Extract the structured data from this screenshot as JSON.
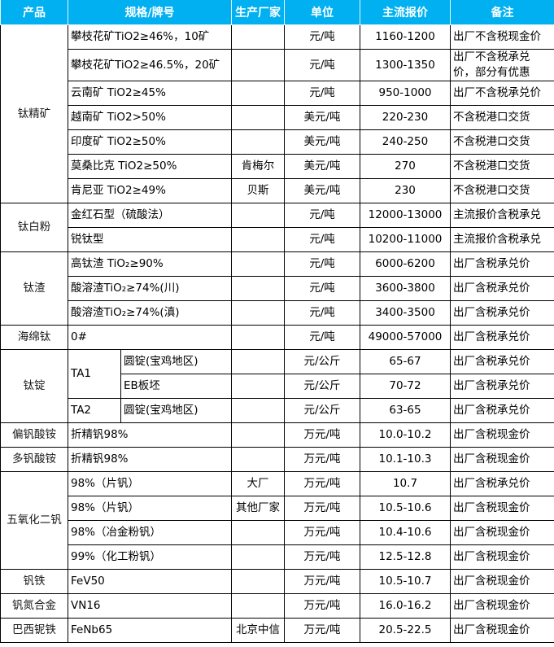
{
  "header": {
    "product": "产品",
    "spec": "规格/牌号",
    "maker": "生产厂家",
    "unit": "单位",
    "price": "主流报价",
    "note": "备注"
  },
  "colors": {
    "header_bg": "#00b0f0",
    "header_text": "#ffffff",
    "grid": "#000000"
  },
  "groups": [
    {
      "product": "钛精矿",
      "items": [
        {
          "spec": "攀枝花矿TiO2≥46%，10矿",
          "maker": "",
          "unit": "元/吨",
          "price": "1160-1200",
          "note": "出厂不含税现金价"
        },
        {
          "spec": "攀枝花矿TiO2≥46.5%，20矿",
          "maker": "",
          "unit": "元/吨",
          "price": "1300-1350",
          "note": "出厂不含税承兑价，部分有优惠"
        },
        {
          "spec": "云南矿 TiO2≥45%",
          "maker": "",
          "unit": "元/吨",
          "price": "950-1000",
          "note": "出厂不含税承兑价"
        },
        {
          "spec": "越南矿 TiO2>50%",
          "maker": "",
          "unit": "美元/吨",
          "price": "220-230",
          "note": "不含税港口交货"
        },
        {
          "spec": "印度矿 TiO2≥50%",
          "maker": "",
          "unit": "美元/吨",
          "price": "240-250",
          "note": "不含税港口交货"
        },
        {
          "spec": "莫桑比克 TiO2≥50%",
          "maker": "肯梅尔",
          "unit": "美元/吨",
          "price": "270",
          "note": "不含税港口交货"
        },
        {
          "spec": "肯尼亚 TiO2≥49%",
          "maker": "贝斯",
          "unit": "美元/吨",
          "price": "230",
          "note": "不含税港口交货"
        }
      ]
    },
    {
      "product": "钛白粉",
      "items": [
        {
          "spec": "金红石型（硫酸法）",
          "maker": "",
          "unit": "元/吨",
          "price": "12000-13000",
          "note": "主流报价含税承兑"
        },
        {
          "spec": "锐钛型",
          "maker": "",
          "unit": "元/吨",
          "price": "10200-11000",
          "note": "主流报价含税承兑"
        }
      ]
    },
    {
      "product": "钛渣",
      "items": [
        {
          "spec": "高钛渣 TiO₂≥90%",
          "maker": "",
          "unit": "元/吨",
          "price": "6000-6200",
          "note": "出厂含税承兑价"
        },
        {
          "spec": "酸溶渣TiO₂≥74%(川)",
          "maker": "",
          "unit": "元/吨",
          "price": "3600-3800",
          "note": "出厂含税承兑价"
        },
        {
          "spec": "酸溶渣TiO₂≥74%(滇)",
          "maker": "",
          "unit": "元/吨",
          "price": "3400-3500",
          "note": "出厂含税承兑价"
        }
      ]
    },
    {
      "product": "海绵钛",
      "items": [
        {
          "spec": "0#",
          "maker": "",
          "unit": "元/吨",
          "price": "49000-57000",
          "note": "出厂含税承兑价"
        }
      ]
    },
    {
      "product": "钛锭",
      "items": [
        {
          "grade": "TA1",
          "form": "圆锭(宝鸡地区)",
          "maker": "",
          "unit": "元/公斤",
          "price": "65-67",
          "note": "出厂含税承兑价"
        },
        {
          "grade": "TA1",
          "form": "EB板坯",
          "maker": "",
          "unit": "元/公斤",
          "price": "70-72",
          "note": "出厂含税承兑价"
        },
        {
          "grade": "TA2",
          "form": "圆锭(宝鸡地区)",
          "maker": "",
          "unit": "元/公斤",
          "price": "63-65",
          "note": "出厂含税承兑价"
        }
      ]
    },
    {
      "product": "偏钒酸铵",
      "items": [
        {
          "spec": "折精钒98%",
          "maker": "",
          "unit": "万元/吨",
          "price": "10.0-10.2",
          "note": "出厂含税现金价"
        }
      ]
    },
    {
      "product": "多钒酸铵",
      "items": [
        {
          "spec": "折精钒98%",
          "maker": "",
          "unit": "万元/吨",
          "price": "10.1-10.3",
          "note": "出厂含税现金价"
        }
      ]
    },
    {
      "product": "五氧化二钒",
      "items": [
        {
          "spec": "98%（片钒）",
          "maker": "大厂",
          "unit": "万元/吨",
          "price": "10.7",
          "note": "出厂含税承兑价"
        },
        {
          "spec": "98%（片钒）",
          "maker": "其他厂家",
          "unit": "万元/吨",
          "price": "10.5-10.6",
          "note": "出厂含税现金价"
        },
        {
          "spec": "98%（冶金粉钒）",
          "maker": "",
          "unit": "万元/吨",
          "price": "10.4-10.6",
          "note": "出厂含税现金价"
        },
        {
          "spec": "99%（化工粉钒）",
          "maker": "",
          "unit": "万元/吨",
          "price": "12.5-12.8",
          "note": "出厂含税现金价"
        }
      ]
    },
    {
      "product": "钒铁",
      "items": [
        {
          "spec": "FeV50",
          "maker": "",
          "unit": "万元/吨",
          "price": "10.5-10.7",
          "note": "出厂含税现金价"
        }
      ]
    },
    {
      "product": "钒氮合金",
      "items": [
        {
          "spec": "VN16",
          "maker": "",
          "unit": "万元/吨",
          "price": "16.0-16.2",
          "note": "出厂含税现金价"
        }
      ]
    },
    {
      "product": "巴西铌铁",
      "items": [
        {
          "spec": "FeNb65",
          "maker": "北京中信",
          "unit": "万元/吨",
          "price": "20.5-22.5",
          "note": "出厂含税现金价"
        }
      ]
    }
  ]
}
